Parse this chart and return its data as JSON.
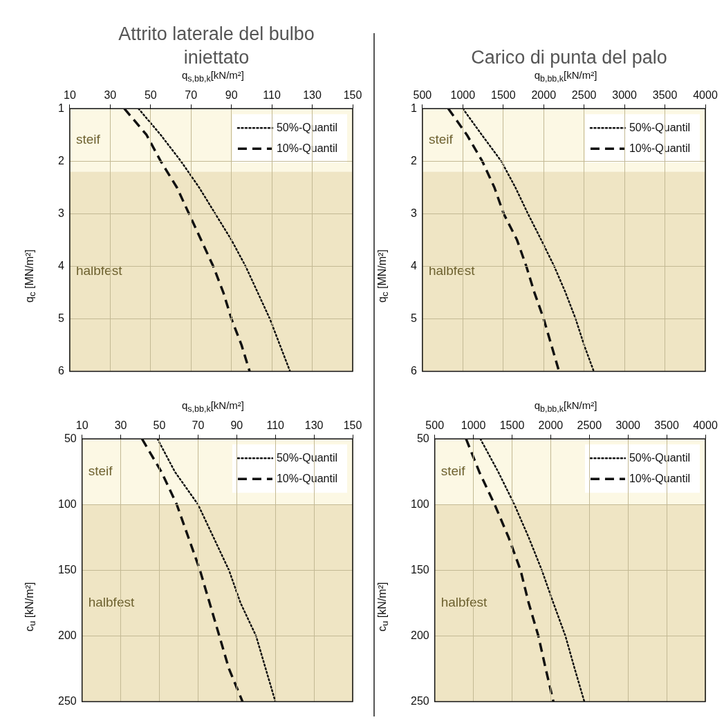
{
  "chart_data": [
    {
      "type": "line",
      "title": "Attrito laterale del bulbo iniettato",
      "xlabel": "q$_{s,bb,k}$[kN/m²]",
      "ylabel": "q$_{c}$ [MN/m²]",
      "xlim": [
        10,
        150
      ],
      "xticks": [
        10,
        30,
        50,
        70,
        90,
        110,
        130,
        150
      ],
      "ylim": [
        6,
        1
      ],
      "yticks": [
        1,
        2,
        3,
        4,
        5,
        6
      ],
      "grid": true,
      "legend": "top right",
      "marker": "none",
      "bands": [
        {
          "axis": "y",
          "from": 1,
          "to": 2.2,
          "label": "steif",
          "color": "#fcf8e4"
        },
        {
          "axis": "y",
          "from": 2.2,
          "to": 6,
          "label": "halbfest",
          "color": "#efe5c4"
        }
      ],
      "series": [
        {
          "name": "50%-Quantil",
          "color": "#111111",
          "line_style": "dotted",
          "x": [
            44,
            55,
            65,
            74,
            82,
            90,
            97,
            103,
            109,
            114,
            119
          ],
          "values": [
            1,
            1.5,
            2,
            2.5,
            3,
            3.5,
            4,
            4.5,
            5,
            5.5,
            6
          ]
        },
        {
          "name": "10%-Quantil",
          "color": "#111111",
          "line_style": "dashed",
          "x": [
            37,
            48,
            55,
            63,
            69,
            75,
            81,
            86,
            90,
            95,
            99
          ],
          "values": [
            1,
            1.5,
            2,
            2.5,
            3,
            3.5,
            4,
            4.5,
            5,
            5.5,
            6
          ]
        }
      ]
    },
    {
      "type": "line",
      "title": "Carico di punta del palo",
      "xlabel": "q$_{b,bb,k}$[kN/m²]",
      "ylabel": "q$_{c}$ [MN/m²]",
      "xlim": [
        500,
        4000
      ],
      "xticks": [
        500,
        1000,
        1500,
        2000,
        2500,
        3000,
        3500,
        4000
      ],
      "ylim": [
        6,
        1
      ],
      "yticks": [
        1,
        2,
        3,
        4,
        5,
        6
      ],
      "grid": true,
      "legend": "top right",
      "marker": "none",
      "bands": [
        {
          "axis": "y",
          "from": 1,
          "to": 2.2,
          "label": "steif",
          "color": "#fcf8e4"
        },
        {
          "axis": "y",
          "from": 2.2,
          "to": 6,
          "label": "halbfest",
          "color": "#efe5c4"
        }
      ],
      "series": [
        {
          "name": "50%-Quantil",
          "color": "#111111",
          "line_style": "dotted",
          "x": [
            1000,
            1235,
            1475,
            1650,
            1805,
            1970,
            2130,
            2270,
            2395,
            2500,
            2620
          ],
          "values": [
            1,
            1.5,
            2,
            2.5,
            3,
            3.5,
            4,
            4.5,
            5,
            5.5,
            6
          ]
        },
        {
          "name": "10%-Quantil",
          "color": "#111111",
          "line_style": "dashed",
          "x": [
            820,
            1050,
            1240,
            1390,
            1505,
            1670,
            1785,
            1885,
            2000,
            2095,
            2190
          ],
          "values": [
            1,
            1.5,
            2,
            2.5,
            3,
            3.5,
            4,
            4.5,
            5,
            5.5,
            6
          ]
        }
      ]
    },
    {
      "type": "line",
      "xlabel": "q$_{s,bb,k}$[kN/m²]",
      "ylabel": "c$_{u}$ [kN/m²]",
      "xlim": [
        10,
        150
      ],
      "xticks": [
        10,
        30,
        50,
        70,
        90,
        110,
        130,
        150
      ],
      "ylim": [
        250,
        50
      ],
      "yticks": [
        50,
        100,
        150,
        200,
        250
      ],
      "grid": true,
      "legend": "top right",
      "marker": "none",
      "bands": [
        {
          "axis": "y",
          "from": 50,
          "to": 100,
          "label": "steif",
          "color": "#fcf8e4"
        },
        {
          "axis": "y",
          "from": 100,
          "to": 250,
          "label": "halbfest",
          "color": "#efe5c4"
        }
      ],
      "series": [
        {
          "name": "50%-Quantil",
          "color": "#111111",
          "line_style": "dotted",
          "x": [
            49,
            58,
            70,
            78,
            86,
            92,
            100,
            105,
            110
          ],
          "values": [
            50,
            75,
            100,
            125,
            150,
            175,
            200,
            225,
            250
          ]
        },
        {
          "name": "10%-Quantil",
          "color": "#111111",
          "line_style": "dashed",
          "x": [
            41,
            51,
            59,
            65,
            71,
            76,
            81,
            86,
            93
          ],
          "values": [
            50,
            75,
            100,
            125,
            150,
            175,
            200,
            225,
            250
          ]
        }
      ]
    },
    {
      "type": "line",
      "xlabel": "q$_{b,bb,k}$[kN/m²]",
      "ylabel": "c$_{u}$ [kN/m²]",
      "xlim": [
        500,
        4000
      ],
      "xticks": [
        500,
        1000,
        1500,
        2000,
        2500,
        3000,
        3500,
        4000
      ],
      "ylim": [
        250,
        50
      ],
      "yticks": [
        50,
        100,
        150,
        200,
        250
      ],
      "grid": true,
      "legend": "top right",
      "marker": "none",
      "bands": [
        {
          "axis": "y",
          "from": 50,
          "to": 100,
          "label": "steif",
          "color": "#fcf8e4"
        },
        {
          "axis": "y",
          "from": 100,
          "to": 250,
          "label": "halbfest",
          "color": "#efe5c4"
        }
      ],
      "series": [
        {
          "name": "50%-Quantil",
          "color": "#111111",
          "line_style": "dotted",
          "x": [
            1090,
            1320,
            1530,
            1715,
            1885,
            2035,
            2190,
            2310,
            2435
          ],
          "values": [
            50,
            75,
            100,
            125,
            150,
            175,
            200,
            225,
            250
          ]
        },
        {
          "name": "10%-Quantil",
          "color": "#111111",
          "line_style": "dashed",
          "x": [
            905,
            1075,
            1275,
            1455,
            1610,
            1715,
            1840,
            1935,
            2035
          ],
          "values": [
            50,
            75,
            100,
            125,
            150,
            175,
            200,
            225,
            250
          ]
        }
      ]
    }
  ]
}
